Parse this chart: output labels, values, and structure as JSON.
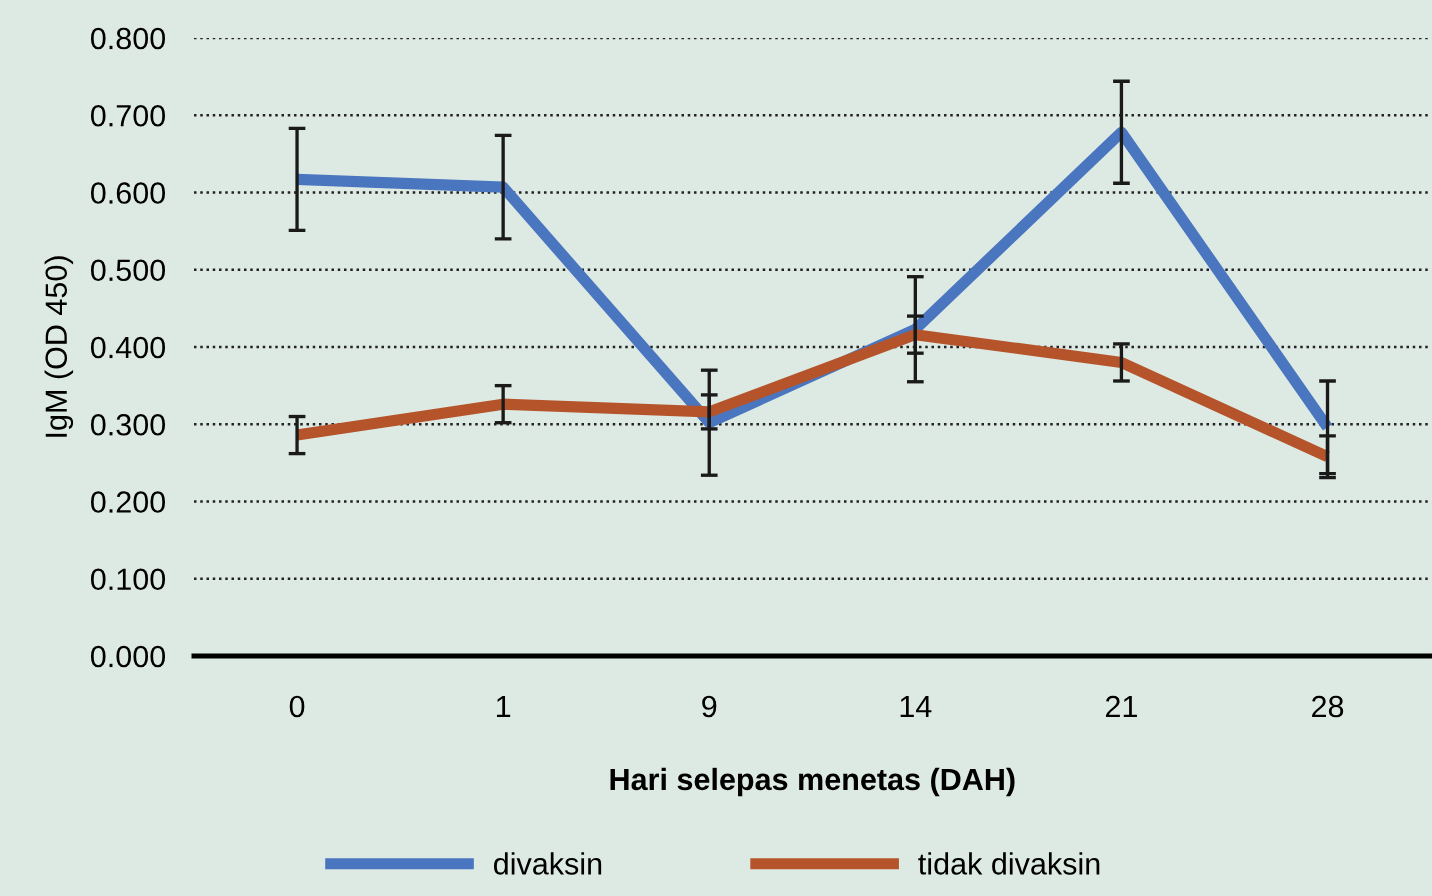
{
  "chart_data": {
    "type": "line",
    "xlabel": "Hari selepas menetas (DAH)",
    "ylabel": "IgM (OD 450)",
    "categories": [
      "0",
      "1",
      "9",
      "14",
      "21",
      "28"
    ],
    "series": [
      {
        "name": "divaksin",
        "color": "#4a76c0",
        "values": [
          0.617,
          0.607,
          0.302,
          0.423,
          0.678,
          0.296
        ],
        "errors": [
          0.066,
          0.067,
          0.068,
          0.068,
          0.066,
          0.06
        ]
      },
      {
        "name": "tidak divaksin",
        "color": "#b5542a",
        "values": [
          0.286,
          0.326,
          0.316,
          0.416,
          0.38,
          0.258
        ],
        "errors": [
          0.024,
          0.024,
          0.022,
          0.024,
          0.024,
          0.027
        ]
      }
    ],
    "ylim": [
      0,
      0.8
    ],
    "yticks": [
      {
        "value": 0,
        "label": "0.000"
      },
      {
        "value": 0.1,
        "label": "0.100"
      },
      {
        "value": 0.2,
        "label": "0.200"
      },
      {
        "value": 0.3,
        "label": "0.300"
      },
      {
        "value": 0.4,
        "label": "0.400"
      },
      {
        "value": 0.5,
        "label": "0.500"
      },
      {
        "value": 0.6,
        "label": "0.600"
      },
      {
        "value": 0.7,
        "label": "0.700"
      },
      {
        "value": 0.8,
        "label": "0.800"
      }
    ],
    "grid": "y",
    "legend": "bottom",
    "marker": "none",
    "line_style": "solid"
  }
}
